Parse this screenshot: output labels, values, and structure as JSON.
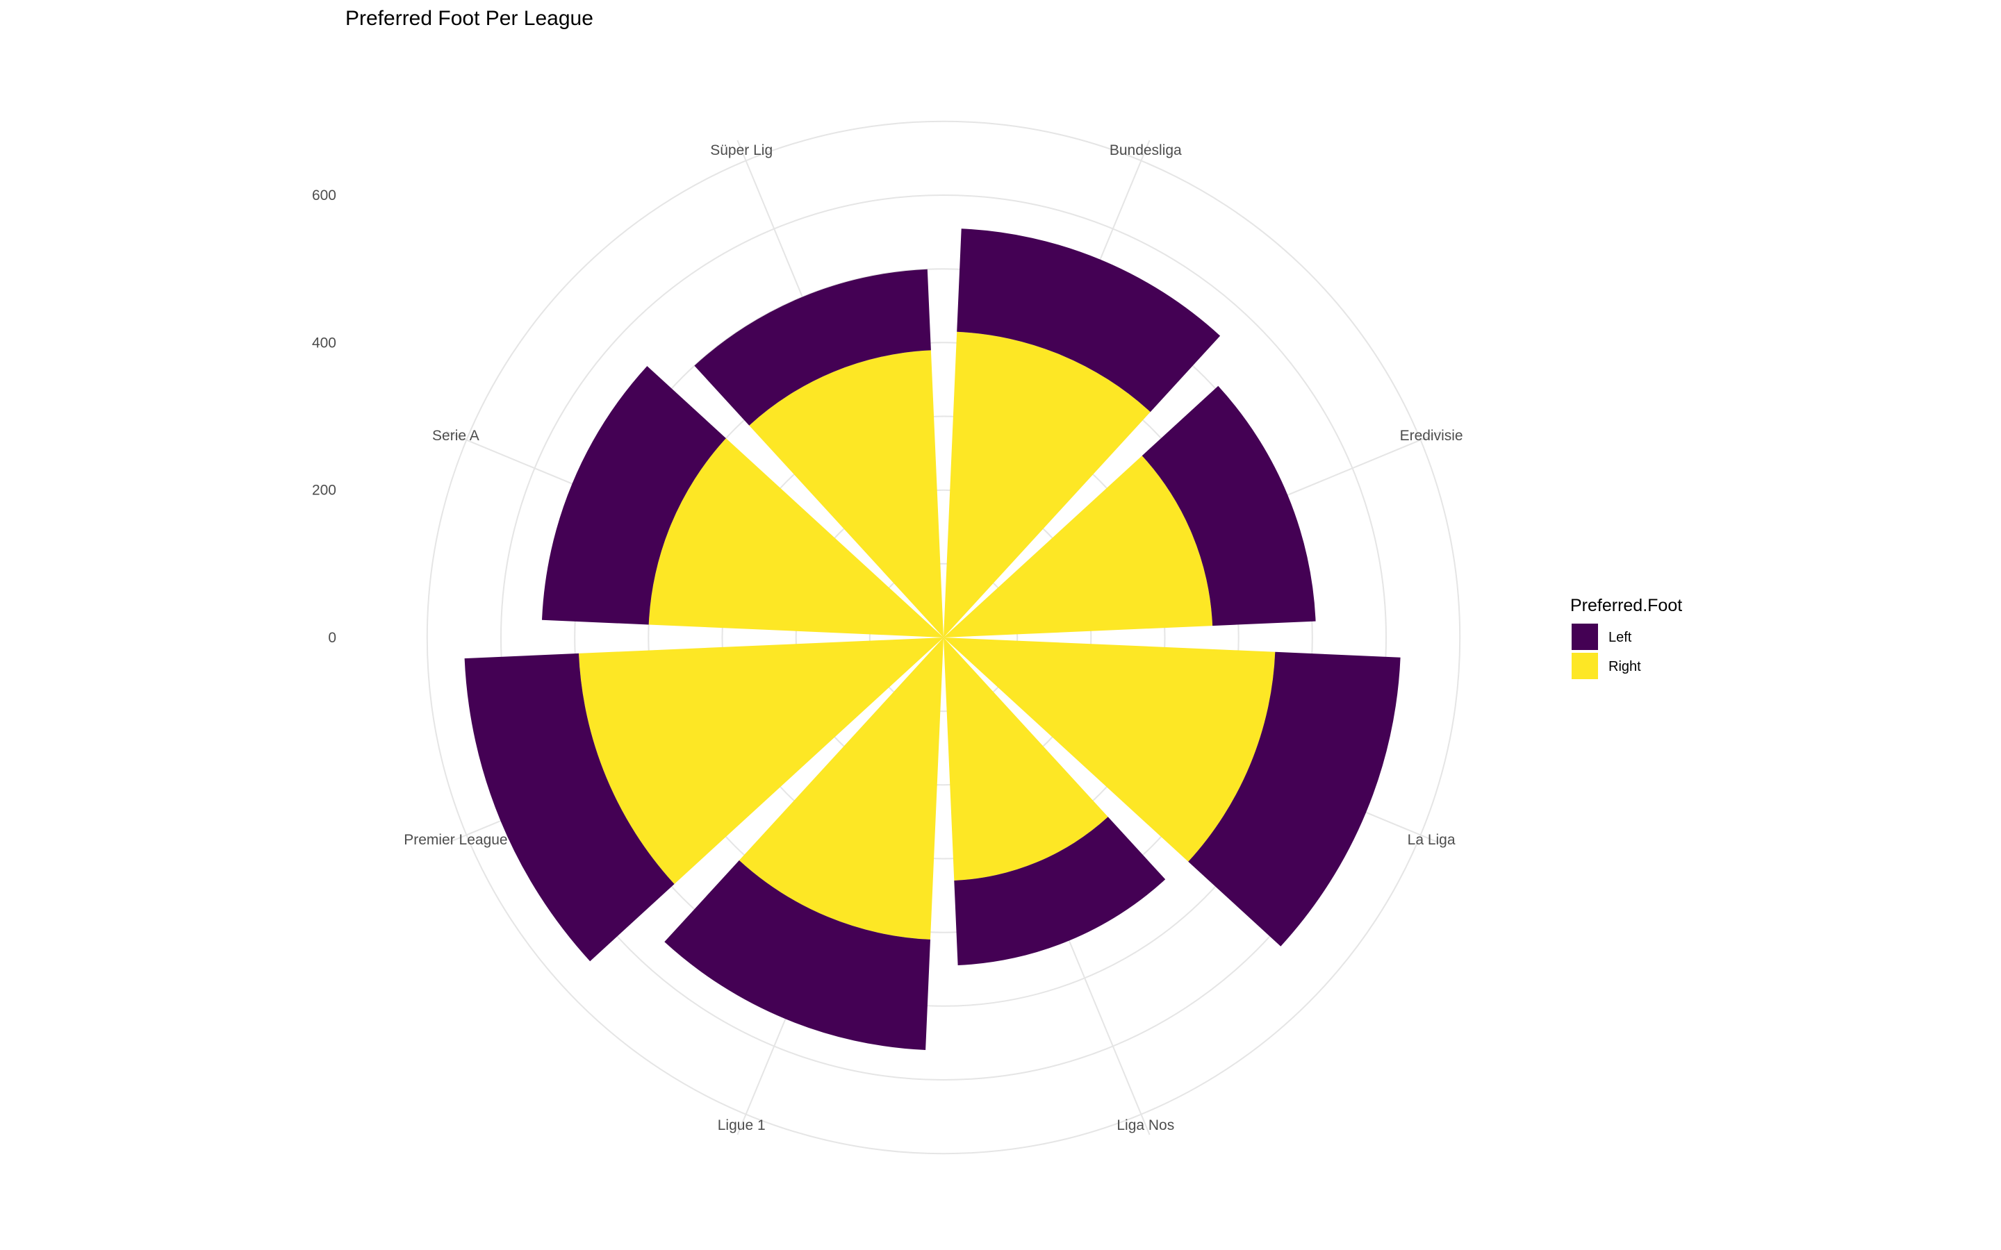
{
  "chart_data": {
    "type": "polar_stacked_bar",
    "title": "Preferred Foot Per League",
    "categories": [
      "Bundesliga",
      "Eredivisie",
      "La Liga",
      "Liga Nos",
      "Ligue 1",
      "Premier League",
      "Serie A",
      "Süper Lig"
    ],
    "series": [
      {
        "name": "Right",
        "color": "#FDE725",
        "values": [
          415,
          365,
          450,
          330,
          410,
          495,
          400,
          390
        ]
      },
      {
        "name": "Left",
        "color": "#440154",
        "values": [
          140,
          140,
          170,
          115,
          150,
          155,
          145,
          110
        ]
      }
    ],
    "stack_order_from_center": [
      "Right",
      "Left"
    ],
    "radial_ticks": [
      "0",
      "200",
      "400",
      "600"
    ],
    "radial_tick_values": [
      0,
      200,
      400,
      600
    ],
    "rlim": [
      0,
      730
    ],
    "legend": {
      "title": "Preferred.Foot",
      "entries": [
        "Left",
        "Right"
      ],
      "position": "right"
    },
    "grid": true
  }
}
